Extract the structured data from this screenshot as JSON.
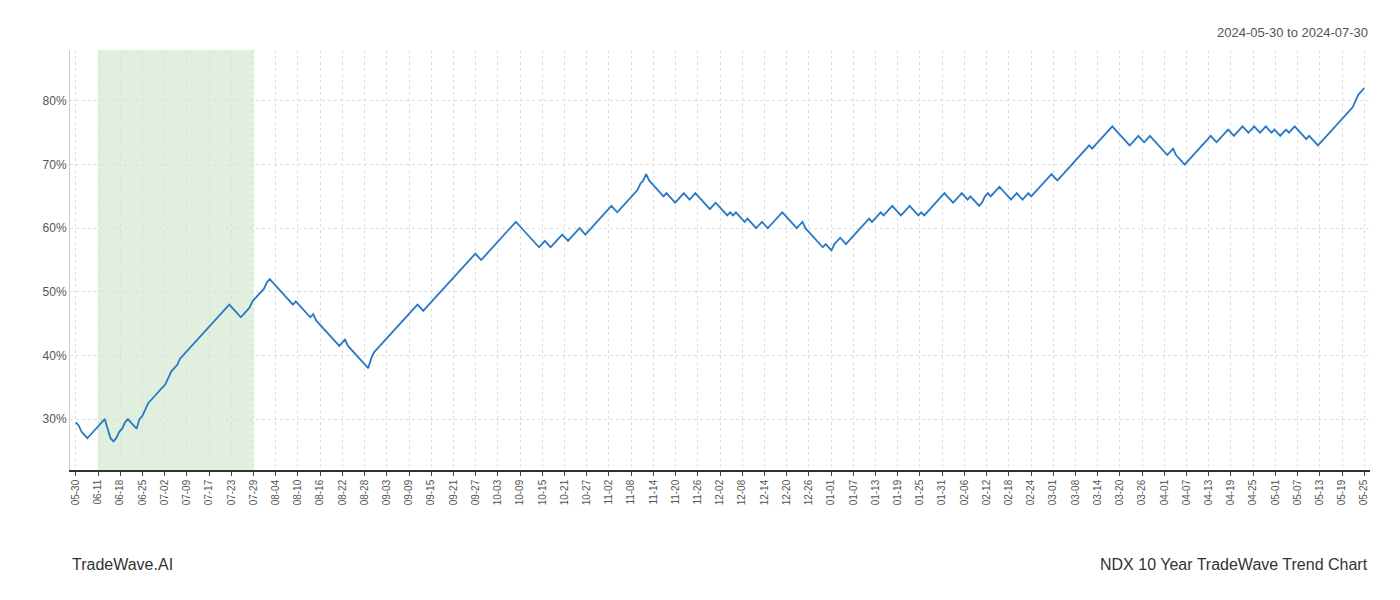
{
  "chart_data": {
    "type": "line",
    "title": "NDX 10 Year TradeWave Trend Chart",
    "subtitle": "2024-05-30 to 2024-07-30",
    "annotations": [
      "TradeWave.AI"
    ],
    "color": "#2878c8",
    "grid": true,
    "xlim": [
      -2,
      447
    ],
    "xticks": [
      {
        "value": 0,
        "label": "05-30"
      },
      {
        "value": 7.672,
        "label": "06-11"
      },
      {
        "value": 15.345,
        "label": "06-18"
      },
      {
        "value": 23.017,
        "label": "06-25"
      },
      {
        "value": 30.69,
        "label": "07-02"
      },
      {
        "value": 38.362,
        "label": "07-09"
      },
      {
        "value": 46.034,
        "label": "07-17"
      },
      {
        "value": 53.707,
        "label": "07-23"
      },
      {
        "value": 61.379,
        "label": "07-29"
      },
      {
        "value": 69.052,
        "label": "08-04"
      },
      {
        "value": 76.724,
        "label": "08-10"
      },
      {
        "value": 84.397,
        "label": "08-16"
      },
      {
        "value": 92.069,
        "label": "08-22"
      },
      {
        "value": 99.741,
        "label": "08-28"
      },
      {
        "value": 107.414,
        "label": "09-03"
      },
      {
        "value": 115.086,
        "label": "09-09"
      },
      {
        "value": 122.759,
        "label": "09-15"
      },
      {
        "value": 130.431,
        "label": "09-21"
      },
      {
        "value": 138.103,
        "label": "09-27"
      },
      {
        "value": 145.776,
        "label": "10-03"
      },
      {
        "value": 153.448,
        "label": "10-09"
      },
      {
        "value": 161.121,
        "label": "10-15"
      },
      {
        "value": 168.793,
        "label": "10-21"
      },
      {
        "value": 176.466,
        "label": "10-27"
      },
      {
        "value": 184.138,
        "label": "11-02"
      },
      {
        "value": 191.81,
        "label": "11-08"
      },
      {
        "value": 199.483,
        "label": "11-14"
      },
      {
        "value": 207.155,
        "label": "11-20"
      },
      {
        "value": 214.828,
        "label": "11-26"
      },
      {
        "value": 222.5,
        "label": "12-02"
      },
      {
        "value": 230.172,
        "label": "12-08"
      },
      {
        "value": 237.845,
        "label": "12-14"
      },
      {
        "value": 245.517,
        "label": "12-20"
      },
      {
        "value": 253.19,
        "label": "12-26"
      },
      {
        "value": 260.862,
        "label": "01-01"
      },
      {
        "value": 268.534,
        "label": "01-07"
      },
      {
        "value": 276.207,
        "label": "01-13"
      },
      {
        "value": 283.879,
        "label": "01-19"
      },
      {
        "value": 291.552,
        "label": "01-25"
      },
      {
        "value": 299.224,
        "label": "01-31"
      },
      {
        "value": 306.897,
        "label": "02-06"
      },
      {
        "value": 314.569,
        "label": "02-12"
      },
      {
        "value": 322.241,
        "label": "02-18"
      },
      {
        "value": 329.914,
        "label": "02-24"
      },
      {
        "value": 337.586,
        "label": "03-01"
      },
      {
        "value": 345.259,
        "label": "03-08"
      },
      {
        "value": 352.931,
        "label": "03-14"
      },
      {
        "value": 360.603,
        "label": "03-20"
      },
      {
        "value": 368.276,
        "label": "03-26"
      },
      {
        "value": 375.948,
        "label": "04-01"
      },
      {
        "value": 383.621,
        "label": "04-07"
      },
      {
        "value": 391.293,
        "label": "04-13"
      },
      {
        "value": 398.966,
        "label": "04-19"
      },
      {
        "value": 406.638,
        "label": "04-25"
      },
      {
        "value": 414.31,
        "label": "05-01"
      },
      {
        "value": 421.983,
        "label": "05-07"
      },
      {
        "value": 429.655,
        "label": "05-13"
      },
      {
        "value": 437.328,
        "label": "05-19"
      },
      {
        "value": 445,
        "label": "05-25"
      }
    ],
    "ylim": [
      22,
      88
    ],
    "yticks": [
      {
        "value": 30,
        "label": "30%"
      },
      {
        "value": 40,
        "label": "40%"
      },
      {
        "value": 50,
        "label": "50%"
      },
      {
        "value": 60,
        "label": "60%"
      },
      {
        "value": 70,
        "label": "70%"
      },
      {
        "value": 80,
        "label": "80%"
      }
    ],
    "spans": [
      {
        "x0": "06-11",
        "x1": "07-29",
        "color": "#d4e8d0"
      }
    ],
    "values": [
      29.5,
      29.0,
      28.0,
      27.5,
      27.0,
      27.5,
      28.0,
      28.5,
      29.0,
      29.5,
      30.0,
      28.5,
      27.0,
      26.5,
      27.0,
      28.0,
      28.5,
      29.5,
      30.0,
      29.5,
      29.0,
      28.5,
      30.0,
      30.5,
      31.5,
      32.5,
      33.0,
      33.5,
      34.0,
      34.5,
      35.0,
      35.5,
      36.5,
      37.5,
      38.0,
      38.5,
      39.5,
      40.0,
      40.5,
      41.0,
      41.5,
      42.0,
      42.5,
      43.0,
      43.5,
      44.0,
      44.5,
      45.0,
      45.5,
      46.0,
      46.5,
      47.0,
      47.5,
      48.0,
      47.5,
      47.0,
      46.5,
      46.0,
      46.5,
      47.0,
      47.5,
      48.5,
      49.0,
      49.5,
      50.0,
      50.5,
      51.5,
      52.0,
      51.5,
      51.0,
      50.5,
      50.0,
      49.5,
      49.0,
      48.5,
      48.0,
      48.5,
      48.0,
      47.5,
      47.0,
      46.5,
      46.0,
      46.5,
      45.5,
      45.0,
      44.5,
      44.0,
      43.5,
      43.0,
      42.5,
      42.0,
      41.5,
      42.0,
      42.5,
      41.5,
      41.0,
      40.5,
      40.0,
      39.5,
      39.0,
      38.5,
      38.0,
      39.5,
      40.5,
      41.0,
      41.5,
      42.0,
      42.5,
      43.0,
      43.5,
      44.0,
      44.5,
      45.0,
      45.5,
      46.0,
      46.5,
      47.0,
      47.5,
      48.0,
      47.5,
      47.0,
      47.5,
      48.0,
      48.5,
      49.0,
      49.5,
      50.0,
      50.5,
      51.0,
      51.5,
      52.0,
      52.5,
      53.0,
      53.5,
      54.0,
      54.5,
      55.0,
      55.5,
      56.0,
      55.5,
      55.0,
      55.5,
      56.0,
      56.5,
      57.0,
      57.5,
      58.0,
      58.5,
      59.0,
      59.5,
      60.0,
      60.5,
      61.0,
      60.5,
      60.0,
      59.5,
      59.0,
      58.5,
      58.0,
      57.5,
      57.0,
      57.5,
      58.0,
      57.5,
      57.0,
      57.5,
      58.0,
      58.5,
      59.0,
      58.5,
      58.0,
      58.5,
      59.0,
      59.5,
      60.0,
      59.5,
      59.0,
      59.5,
      60.0,
      60.5,
      61.0,
      61.5,
      62.0,
      62.5,
      63.0,
      63.5,
      63.0,
      62.5,
      63.0,
      63.5,
      64.0,
      64.5,
      65.0,
      65.5,
      66.0,
      67.0,
      67.5,
      68.5,
      67.5,
      67.0,
      66.5,
      66.0,
      65.5,
      65.0,
      65.5,
      65.0,
      64.5,
      64.0,
      64.5,
      65.0,
      65.5,
      65.0,
      64.5,
      65.0,
      65.5,
      65.0,
      64.5,
      64.0,
      63.5,
      63.0,
      63.5,
      64.0,
      63.5,
      63.0,
      62.5,
      62.0,
      62.5,
      62.0,
      62.5,
      62.0,
      61.5,
      61.0,
      61.5,
      61.0,
      60.5,
      60.0,
      60.5,
      61.0,
      60.5,
      60.0,
      60.5,
      61.0,
      61.5,
      62.0,
      62.5,
      62.0,
      61.5,
      61.0,
      60.5,
      60.0,
      60.5,
      61.0,
      60.0,
      59.5,
      59.0,
      58.5,
      58.0,
      57.5,
      57.0,
      57.5,
      57.0,
      56.5,
      57.5,
      58.0,
      58.5,
      58.0,
      57.5,
      58.0,
      58.5,
      59.0,
      59.5,
      60.0,
      60.5,
      61.0,
      61.5,
      61.0,
      61.5,
      62.0,
      62.5,
      62.0,
      62.5,
      63.0,
      63.5,
      63.0,
      62.5,
      62.0,
      62.5,
      63.0,
      63.5,
      63.0,
      62.5,
      62.0,
      62.5,
      62.0,
      62.5,
      63.0,
      63.5,
      64.0,
      64.5,
      65.0,
      65.5,
      65.0,
      64.5,
      64.0,
      64.5,
      65.0,
      65.5,
      65.0,
      64.5,
      65.0,
      64.5,
      64.0,
      63.5,
      64.0,
      65.0,
      65.5,
      65.0,
      65.5,
      66.0,
      66.5,
      66.0,
      65.5,
      65.0,
      64.5,
      65.0,
      65.5,
      65.0,
      64.5,
      65.0,
      65.5,
      65.0,
      65.5,
      66.0,
      66.5,
      67.0,
      67.5,
      68.0,
      68.5,
      68.0,
      67.5,
      68.0,
      68.5,
      69.0,
      69.5,
      70.0,
      70.5,
      71.0,
      71.5,
      72.0,
      72.5,
      73.0,
      72.5,
      73.0,
      73.5,
      74.0,
      74.5,
      75.0,
      75.5,
      76.0,
      75.5,
      75.0,
      74.5,
      74.0,
      73.5,
      73.0,
      73.5,
      74.0,
      74.5,
      74.0,
      73.5,
      74.0,
      74.5,
      74.0,
      73.5,
      73.0,
      72.5,
      72.0,
      71.5,
      72.0,
      72.5,
      71.5,
      71.0,
      70.5,
      70.0,
      70.5,
      71.0,
      71.5,
      72.0,
      72.5,
      73.0,
      73.5,
      74.0,
      74.5,
      74.0,
      73.5,
      74.0,
      74.5,
      75.0,
      75.5,
      75.0,
      74.5,
      75.0,
      75.5,
      76.0,
      75.5,
      75.0,
      75.5,
      76.0,
      75.5,
      75.0,
      75.5,
      76.0,
      75.5,
      75.0,
      75.5,
      75.0,
      74.5,
      75.0,
      75.5,
      75.0,
      75.5,
      76.0,
      75.5,
      75.0,
      74.5,
      74.0,
      74.5,
      74.0,
      73.5,
      73.0,
      73.5,
      74.0,
      74.5,
      75.0,
      75.5,
      76.0,
      76.5,
      77.0,
      77.5,
      78.0,
      78.5,
      79.0,
      80.0,
      81.0,
      81.5,
      82.0
    ]
  }
}
